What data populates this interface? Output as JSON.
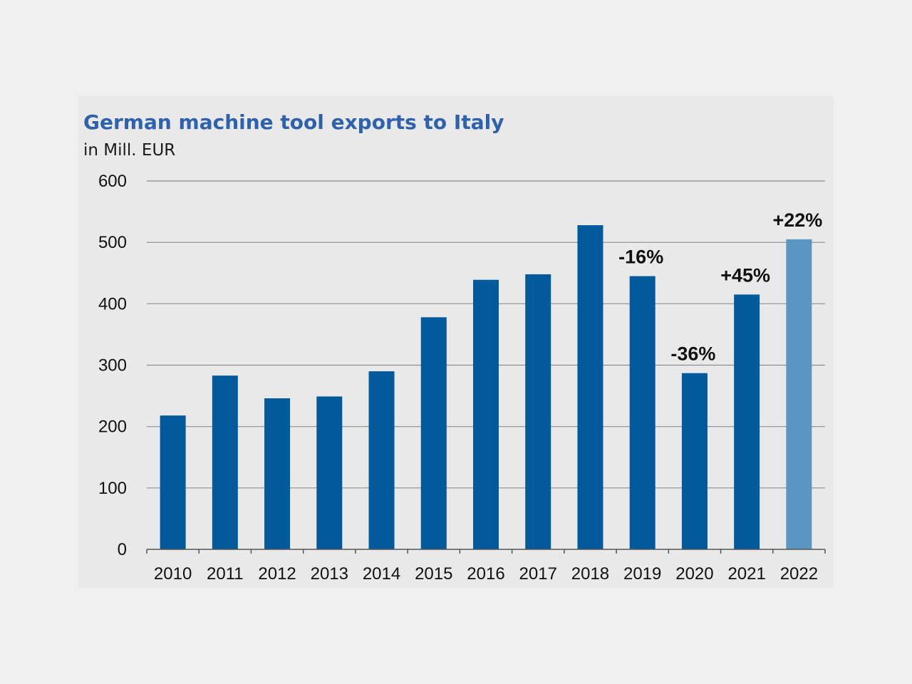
{
  "chart_data": {
    "type": "bar",
    "title": "German machine tool exports to Italy",
    "ylabel": "in Mill. EUR",
    "xlabel": "",
    "categories": [
      "2010",
      "2011",
      "2012",
      "2013",
      "2014",
      "2015",
      "2016",
      "2017",
      "2018",
      "2019",
      "2020",
      "2021",
      "2022"
    ],
    "values": [
      218,
      283,
      246,
      249,
      290,
      378,
      439,
      448,
      528,
      445,
      287,
      415,
      505
    ],
    "ylim": [
      0,
      600
    ],
    "yticks": [
      0,
      100,
      200,
      300,
      400,
      500,
      600
    ],
    "grid": true,
    "legend": "none",
    "annotations": [
      {
        "category": "2019",
        "text": "-16%"
      },
      {
        "category": "2020",
        "text": "-36%"
      },
      {
        "category": "2021",
        "text": "+45%"
      },
      {
        "category": "2022",
        "text": "+22%"
      }
    ],
    "highlight_category": "2022",
    "colors": {
      "bar": "#005a9c",
      "highlight_bar": "#5b96c1",
      "gridline": "#8c8c8c",
      "axis": "#555555",
      "title": "#2f62ad",
      "panel_background": "#e9e9e9",
      "page_background": "#f0f0f0"
    }
  }
}
